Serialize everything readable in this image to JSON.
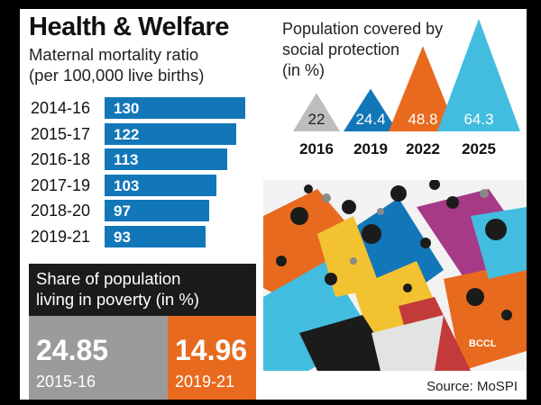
{
  "title": "Health & Welfare",
  "mmr": {
    "subtitle_line1": "Maternal mortality ratio",
    "subtitle_line2": "(per 100,000 live births)",
    "bar_color": "#1277b8"
  },
  "poverty": {
    "title_line1": "Share of population",
    "title_line2": "living in poverty (in %)",
    "left": {
      "value": "24.85",
      "year": "2015-16",
      "color": "#9b9b9b"
    },
    "right": {
      "value": "14.96",
      "year": "2019-21",
      "color": "#e86a1e"
    }
  },
  "population": {
    "title_line1": "Population covered by",
    "title_line2": "social protection",
    "title_line3": "(in %)",
    "colors": [
      "#bdbdbd",
      "#1277b8",
      "#e86a1e",
      "#42bde0"
    ]
  },
  "chart_data": [
    {
      "type": "bar",
      "title": "Maternal mortality ratio",
      "categories": [
        "2014-16",
        "2015-17",
        "2016-18",
        "2017-19",
        "2018-20",
        "2019-21"
      ],
      "values": [
        130,
        122,
        113,
        103,
        97,
        93
      ]
    },
    {
      "type": "bar",
      "title": "Population covered by social protection (in %)",
      "categories": [
        "2016",
        "2019",
        "2022",
        "2025"
      ],
      "values": [
        22,
        24.4,
        48.8,
        64.3
      ]
    }
  ],
  "illustration": {
    "watermark": "BCCL"
  },
  "source": "Source: MoSPI"
}
